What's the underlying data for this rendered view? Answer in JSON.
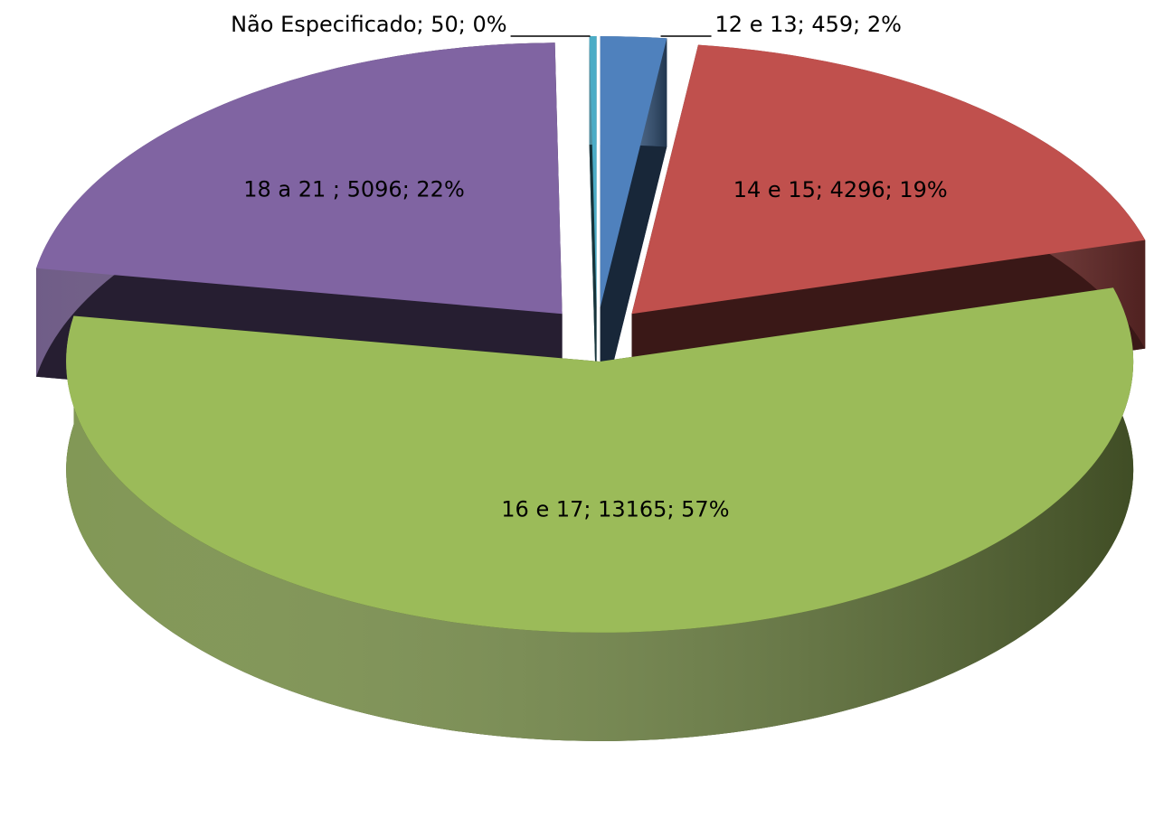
{
  "chart_data": {
    "type": "pie",
    "values": [
      459,
      4296,
      13165,
      5096,
      50
    ],
    "value_labels": [
      "12 e 13; 459; 2%",
      "14 e 15; 4296; 19%",
      "16 e 17; 13165; 57%",
      "18 a 21 ; 5096; 22%",
      "Não Especificado; 50; 0%"
    ],
    "colors": [
      "#4f81bd",
      "#c0504d",
      "#9bbb59",
      "#8064a2",
      "#4bacc6"
    ]
  }
}
